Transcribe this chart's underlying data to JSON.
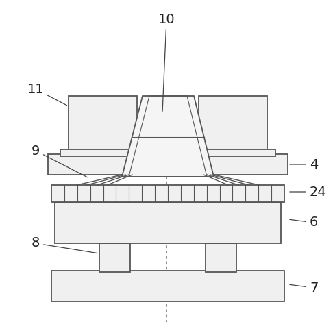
{
  "background_color": "#ffffff",
  "line_color": "#555555",
  "fill_color": "#f0f0f0",
  "label_color": "#222222",
  "fig_width": 4.86,
  "fig_height": 4.7,
  "dpi": 100,
  "lw": 1.3
}
